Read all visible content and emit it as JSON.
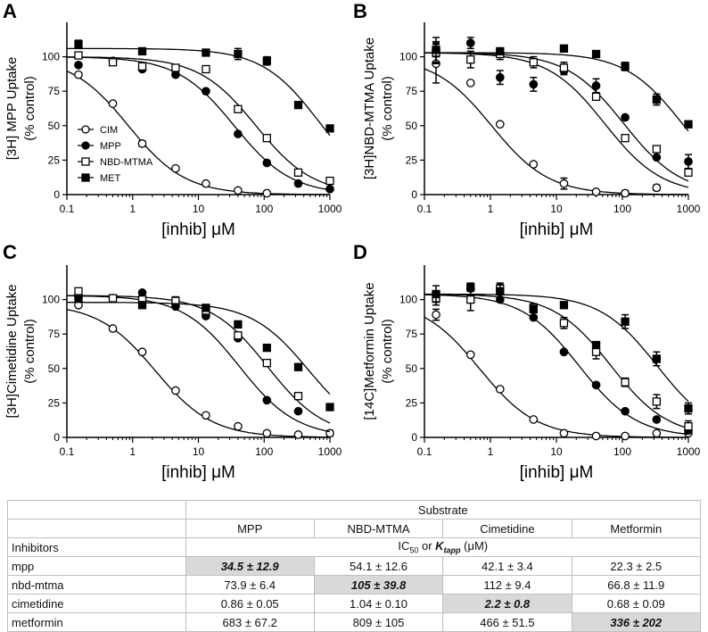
{
  "panels": [
    {
      "id": "A",
      "letter": "A",
      "ylabel_lines": [
        "[3H] MPP Uptake",
        "(% control)"
      ],
      "xlabel": "[inhib] μM",
      "legend": [
        "CIM",
        "MPP",
        "NBD-MTMA",
        "MET"
      ],
      "ylim": [
        0,
        125
      ],
      "xlim": [
        0.1,
        1000
      ],
      "yticks": [
        0,
        25,
        50,
        75,
        100
      ],
      "xticks": [
        "0.1",
        "1",
        "10",
        "100",
        "1000"
      ],
      "series": [
        {
          "name": "CIM",
          "top": 100,
          "bottom": 0,
          "ic50": 0.86,
          "hill": 1.0,
          "x": [
            0.15,
            0.5,
            1.4,
            4.5,
            13,
            40,
            110
          ],
          "y": [
            87,
            66,
            37,
            19,
            8,
            3,
            1
          ],
          "err": [
            0,
            0,
            2,
            0,
            0,
            0,
            0
          ]
        },
        {
          "name": "MPP",
          "top": 100,
          "bottom": 0,
          "ic50": 35,
          "hill": 1.0,
          "x": [
            0.15,
            0.5,
            1.4,
            4.5,
            13,
            40,
            110,
            330,
            1000
          ],
          "y": [
            94,
            97,
            91,
            87,
            75,
            44,
            23,
            8,
            4
          ],
          "err": [
            0,
            0,
            0,
            0,
            0,
            0,
            0,
            0,
            0
          ]
        },
        {
          "name": "NBD-MTMA",
          "top": 100,
          "bottom": 0,
          "ic50": 75,
          "hill": 1.0,
          "x": [
            0.15,
            0.5,
            1.4,
            4.5,
            13,
            40,
            110,
            330,
            1000
          ],
          "y": [
            101,
            96,
            93,
            92,
            91,
            62,
            41,
            16,
            10
          ],
          "err": [
            0,
            0,
            0,
            0,
            0,
            0,
            0,
            0,
            0
          ]
        },
        {
          "name": "MET",
          "top": 106,
          "bottom": 0,
          "ic50": 680,
          "hill": 1.0,
          "x": [
            0.15,
            1.4,
            13,
            40,
            110,
            330,
            1000
          ],
          "y": [
            109,
            104,
            103,
            102,
            97,
            65,
            48
          ],
          "err": [
            3,
            0,
            0,
            4,
            3,
            0,
            0
          ]
        }
      ]
    },
    {
      "id": "B",
      "letter": "B",
      "ylabel_lines": [
        "[3H]NBD-MTMA Uptake",
        "(% control)"
      ],
      "xlabel": "[inhib] μM",
      "legend": [],
      "ylim": [
        0,
        125
      ],
      "xlim": [
        0.1,
        1000
      ],
      "yticks": [
        0,
        25,
        50,
        75,
        100
      ],
      "xticks": [
        "0.1",
        "1",
        "10",
        "100",
        "1000"
      ],
      "series": [
        {
          "name": "CIM",
          "top": 100,
          "bottom": 0,
          "ic50": 1.04,
          "hill": 1.0,
          "x": [
            0.15,
            0.5,
            1.4,
            4.5,
            13,
            40,
            110,
            330
          ],
          "y": [
            95,
            81,
            51,
            22,
            8,
            2,
            1,
            5
          ],
          "err": [
            14,
            0,
            0,
            0,
            4,
            0,
            2,
            2
          ]
        },
        {
          "name": "MPP",
          "top": 103,
          "bottom": 0,
          "ic50": 54,
          "hill": 1.0,
          "x": [
            0.15,
            0.5,
            1.4,
            4.5,
            13,
            40,
            110,
            330,
            1000
          ],
          "y": [
            105,
            110,
            85,
            80,
            90,
            79,
            56,
            27,
            24
          ],
          "err": [
            9,
            4,
            5,
            5,
            3,
            5,
            0,
            0,
            5
          ]
        },
        {
          "name": "NBD-MTMA",
          "top": 103,
          "bottom": 0,
          "ic50": 105,
          "hill": 1.0,
          "x": [
            0.15,
            0.5,
            1.4,
            4.5,
            13,
            40,
            110,
            330,
            1000
          ],
          "y": [
            103,
            98,
            102,
            96,
            92,
            71,
            41,
            33,
            16
          ],
          "err": [
            8,
            6,
            4,
            4,
            4,
            0,
            0,
            0,
            0
          ]
        },
        {
          "name": "MET",
          "top": 103,
          "bottom": 0,
          "ic50": 810,
          "hill": 1.0,
          "x": [
            0.15,
            1.4,
            13,
            40,
            110,
            330,
            1000
          ],
          "y": [
            105,
            104,
            106,
            102,
            93,
            69,
            51
          ],
          "err": [
            5,
            0,
            0,
            0,
            3,
            4,
            0
          ]
        }
      ]
    },
    {
      "id": "C",
      "letter": "C",
      "ylabel_lines": [
        "[3H]Cimetidine Uptake",
        "(% control)"
      ],
      "xlabel": "[inhib] μM",
      "legend": [],
      "ylim": [
        0,
        125
      ],
      "xlim": [
        0.1,
        1000
      ],
      "yticks": [
        0,
        25,
        50,
        75,
        100
      ],
      "xticks": [
        "0.1",
        "1",
        "10",
        "100",
        "1000"
      ],
      "series": [
        {
          "name": "CIM",
          "top": 97,
          "bottom": 0,
          "ic50": 2.2,
          "hill": 1.0,
          "x": [
            0.15,
            0.5,
            1.4,
            4.5,
            13,
            40,
            110,
            330,
            1000
          ],
          "y": [
            96,
            79,
            62,
            34,
            16,
            8,
            3,
            2,
            3
          ],
          "err": [
            0,
            0,
            0,
            0,
            0,
            0,
            0,
            0,
            2
          ]
        },
        {
          "name": "MPP",
          "top": 103,
          "bottom": 0,
          "ic50": 42,
          "hill": 1.0,
          "x": [
            0.15,
            0.5,
            1.4,
            4.5,
            13,
            40,
            110,
            330
          ],
          "y": [
            102,
            101,
            105,
            95,
            88,
            72,
            27,
            19
          ],
          "err": [
            0,
            0,
            0,
            0,
            0,
            0,
            0,
            0
          ]
        },
        {
          "name": "NBD-MTMA",
          "top": 103,
          "bottom": 0,
          "ic50": 112,
          "hill": 1.0,
          "x": [
            0.15,
            0.5,
            1.4,
            4.5,
            13,
            40,
            110,
            330
          ],
          "y": [
            106,
            101,
            100,
            99,
            92,
            74,
            54,
            30
          ],
          "err": [
            0,
            0,
            0,
            3,
            0,
            0,
            0,
            0
          ]
        },
        {
          "name": "MET",
          "top": 98,
          "bottom": 0,
          "ic50": 470,
          "hill": 1.0,
          "x": [
            0.15,
            1.4,
            13,
            40,
            110,
            330,
            1000
          ],
          "y": [
            101,
            96,
            94,
            82,
            65,
            51,
            22
          ],
          "err": [
            0,
            0,
            0,
            0,
            0,
            0,
            0
          ]
        }
      ]
    },
    {
      "id": "D",
      "letter": "D",
      "ylabel_lines": [
        "[14C]Metformin Uptake",
        "(% control)"
      ],
      "xlabel": "[inhib] μM",
      "legend": [],
      "ylim": [
        0,
        125
      ],
      "xlim": [
        0.1,
        1000
      ],
      "yticks": [
        0,
        25,
        50,
        75,
        100
      ],
      "xticks": [
        "0.1",
        "1",
        "10",
        "100",
        "1000"
      ],
      "series": [
        {
          "name": "CIM",
          "top": 100,
          "bottom": 0,
          "ic50": 0.68,
          "hill": 1.0,
          "x": [
            0.15,
            0.5,
            1.4,
            4.5,
            13,
            40,
            110,
            330,
            1000
          ],
          "y": [
            89,
            60,
            35,
            13,
            3,
            1,
            1,
            3,
            3
          ],
          "err": [
            4,
            0,
            0,
            0,
            0,
            0,
            0,
            0,
            0
          ]
        },
        {
          "name": "MPP",
          "top": 104,
          "bottom": 0,
          "ic50": 22,
          "hill": 1.0,
          "x": [
            0.15,
            0.5,
            1.4,
            4.5,
            13,
            40,
            110,
            330,
            1000
          ],
          "y": [
            104,
            108,
            100,
            87,
            62,
            38,
            19,
            13,
            5
          ],
          "err": [
            0,
            0,
            0,
            0,
            0,
            0,
            0,
            0,
            0
          ]
        },
        {
          "name": "NBD-MTMA",
          "top": 104,
          "bottom": 0,
          "ic50": 67,
          "hill": 1.0,
          "x": [
            0.15,
            0.5,
            1.4,
            4.5,
            13,
            40,
            110,
            330,
            1000
          ],
          "y": [
            101,
            100,
            108,
            94,
            83,
            62,
            40,
            26,
            8
          ],
          "err": [
            5,
            8,
            4,
            3,
            4,
            5,
            3,
            5,
            4
          ]
        },
        {
          "name": "MET",
          "top": 104,
          "bottom": 0,
          "ic50": 336,
          "hill": 1.0,
          "x": [
            0.15,
            0.5,
            1.4,
            4.5,
            13,
            40,
            110,
            330,
            1000
          ],
          "y": [
            104,
            109,
            106,
            93,
            96,
            67,
            84,
            57,
            21
          ],
          "err": [
            6,
            3,
            5,
            0,
            0,
            0,
            5,
            5,
            4
          ]
        }
      ]
    }
  ],
  "table": {
    "header_substrate": "Substrate",
    "columns": [
      "MPP",
      "NBD-MTMA",
      "Cimetidine",
      "Metformin"
    ],
    "inhibitors_label": "Inhibitors",
    "units_prefix": "IC",
    "units_sub": "50",
    "units_mid": " or ",
    "units_k": "K",
    "units_ksub": "tapp",
    "units_suffix": " (μM)",
    "rows": [
      {
        "label": "mpp",
        "cells": [
          "34.5 ± 12.9",
          "54.1 ± 12.6",
          "42.1 ± 3.4",
          "22.3 ± 2.5"
        ],
        "highlight": 0
      },
      {
        "label": "nbd-mtma",
        "cells": [
          "73.9 ± 6.4",
          "105 ± 39.8",
          "112 ± 9.4",
          "66.8 ± 11.9"
        ],
        "highlight": 1
      },
      {
        "label": "cimetidine",
        "cells": [
          "0.86 ± 0.05",
          "1.04 ± 0.10",
          "2.2 ± 0.8",
          "0.68 ± 0.09"
        ],
        "highlight": 2
      },
      {
        "label": "metformin",
        "cells": [
          "683 ± 67.2",
          "809 ± 105",
          "466 ± 51.5",
          "336 ± 202"
        ],
        "highlight": 3
      }
    ]
  },
  "chart_data": [
    {
      "type": "scatter",
      "title": "A",
      "ylabel": "[3H] MPP Uptake (% control)",
      "xlabel": "[inhib] μM",
      "xscale": "log",
      "xlim": [
        0.1,
        1000
      ],
      "ylim": [
        0,
        125
      ],
      "series": [
        "CIM",
        "MPP",
        "NBD-MTMA",
        "MET"
      ]
    },
    {
      "type": "scatter",
      "title": "B",
      "ylabel": "[3H]NBD-MTMA Uptake (% control)",
      "xlabel": "[inhib] μM",
      "xscale": "log",
      "xlim": [
        0.1,
        1000
      ],
      "ylim": [
        0,
        125
      ],
      "series": [
        "CIM",
        "MPP",
        "NBD-MTMA",
        "MET"
      ]
    },
    {
      "type": "scatter",
      "title": "C",
      "ylabel": "[3H]Cimetidine Uptake (% control)",
      "xlabel": "[inhib] μM",
      "xscale": "log",
      "xlim": [
        0.1,
        1000
      ],
      "ylim": [
        0,
        125
      ],
      "series": [
        "CIM",
        "MPP",
        "NBD-MTMA",
        "MET"
      ]
    },
    {
      "type": "scatter",
      "title": "D",
      "ylabel": "[14C]Metformin Uptake (% control)",
      "xlabel": "[inhib] μM",
      "xscale": "log",
      "xlim": [
        0.1,
        1000
      ],
      "ylim": [
        0,
        125
      ],
      "series": [
        "CIM",
        "MPP",
        "NBD-MTMA",
        "MET"
      ]
    }
  ]
}
